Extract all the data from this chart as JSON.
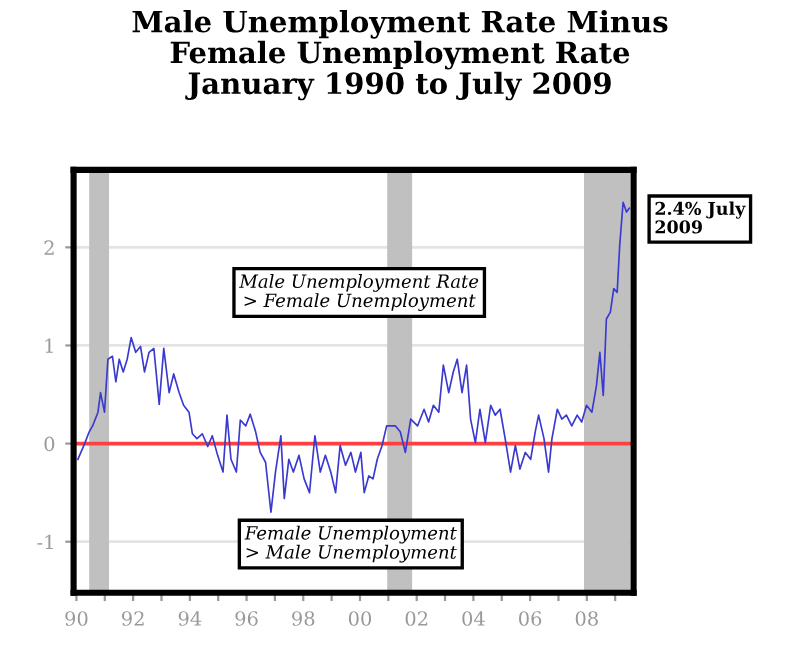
{
  "chart_data": {
    "type": "line",
    "title": "Male Unemployment Rate Minus\nFemale Unemployment Rate\nJanuary 1990 to July 2009",
    "annotations": [
      "Male Unemployment Rate\n> Female Unemployment",
      "Female Unemployment\n> Male Unemployment",
      {
        "text": "2.4% July\n2009",
        "x": 2009.5,
        "y": 2.4
      }
    ],
    "series": [
      {
        "color": "#3a3ad0",
        "x": [
          1990.05,
          1990.29,
          1990.45,
          1990.57,
          1990.76,
          1990.85,
          1990.99,
          1991.11,
          1991.27,
          1991.39,
          1991.51,
          1991.65,
          1991.79,
          1991.93,
          1992.09,
          1992.26,
          1992.4,
          1992.56,
          1992.73,
          1992.92,
          1993.08,
          1993.27,
          1993.43,
          1993.62,
          1993.78,
          1993.97,
          1994.09,
          1994.25,
          1994.44,
          1994.63,
          1994.79,
          1994.98,
          1995.17,
          1995.31,
          1995.45,
          1995.64,
          1995.78,
          1995.97,
          1996.13,
          1996.32,
          1996.48,
          1996.67,
          1996.86,
          1997.02,
          1997.21,
          1997.33,
          1997.49,
          1997.65,
          1997.85,
          1998.03,
          1998.22,
          1998.41,
          1998.6,
          1998.78,
          1998.97,
          1999.14,
          1999.3,
          1999.49,
          1999.68,
          1999.84,
          2000.03,
          2000.15,
          2000.31,
          2000.46,
          2000.61,
          2000.78,
          2000.94,
          2001.25,
          2001.42,
          2001.6,
          2001.79,
          2002.03,
          2002.26,
          2002.42,
          2002.59,
          2002.78,
          2002.94,
          2003.13,
          2003.29,
          2003.43,
          2003.6,
          2003.76,
          2003.9,
          2004.07,
          2004.23,
          2004.42,
          2004.61,
          2004.77,
          2004.94,
          2005.12,
          2005.31,
          2005.48,
          2005.64,
          2005.83,
          2006.02,
          2006.18,
          2006.3,
          2006.49,
          2006.65,
          2006.77,
          2006.96,
          2007.12,
          2007.28,
          2007.47,
          2007.66,
          2007.82,
          2007.99,
          2008.18,
          2008.34,
          2008.46,
          2008.58,
          2008.69,
          2008.83,
          2008.95,
          2009.07,
          2009.16,
          2009.28,
          2009.4,
          2009.5
        ],
        "values": [
          -0.16,
          0,
          0.12,
          0.18,
          0.32,
          0.52,
          0.32,
          0.86,
          0.89,
          0.63,
          0.86,
          0.73,
          0.86,
          1.08,
          0.93,
          0.99,
          0.73,
          0.93,
          0.97,
          0.4,
          0.97,
          0.52,
          0.71,
          0.52,
          0.39,
          0.32,
          0.1,
          0.05,
          0.1,
          -0.03,
          0.08,
          -0.12,
          -0.29,
          0.29,
          -0.16,
          -0.29,
          0.24,
          0.18,
          0.3,
          0.12,
          -0.09,
          -0.19,
          -0.7,
          -0.29,
          0.08,
          -0.56,
          -0.16,
          -0.29,
          -0.12,
          -0.36,
          -0.5,
          0.08,
          -0.29,
          -0.12,
          -0.29,
          -0.5,
          -0.02,
          -0.22,
          -0.09,
          -0.29,
          -0.09,
          -0.5,
          -0.33,
          -0.36,
          -0.16,
          -0.02,
          0.18,
          0.18,
          0.12,
          -0.09,
          0.25,
          0.18,
          0.35,
          0.22,
          0.39,
          0.32,
          0.8,
          0.52,
          0.73,
          0.86,
          0.52,
          0.8,
          0.25,
          0.01,
          0.35,
          0.01,
          0.39,
          0.29,
          0.35,
          0.05,
          -0.29,
          -0.02,
          -0.26,
          -0.09,
          -0.16,
          0.12,
          0.29,
          0.05,
          -0.29,
          0.05,
          0.35,
          0.25,
          0.29,
          0.18,
          0.29,
          0.22,
          0.39,
          0.32,
          0.59,
          0.93,
          0.49,
          1.27,
          1.34,
          1.58,
          1.54,
          2.02,
          2.46,
          2.36,
          2.4
        ]
      }
    ],
    "xlim": [
      1989.9,
      2009.65
    ],
    "ylim": [
      -1.52,
      2.79
    ],
    "xticks": [
      {
        "value": 1990,
        "label": "90"
      },
      {
        "value": 1991,
        "label": null
      },
      {
        "value": 1992,
        "label": "92"
      },
      {
        "value": 1993,
        "label": null
      },
      {
        "value": 1994,
        "label": "94"
      },
      {
        "value": 1995,
        "label": null
      },
      {
        "value": 1996,
        "label": "96"
      },
      {
        "value": 1997,
        "label": null
      },
      {
        "value": 1998,
        "label": "98"
      },
      {
        "value": 1999,
        "label": null
      },
      {
        "value": 2000,
        "label": "00"
      },
      {
        "value": 2001,
        "label": null
      },
      {
        "value": 2002,
        "label": "02"
      },
      {
        "value": 2003,
        "label": null
      },
      {
        "value": 2004,
        "label": "04"
      },
      {
        "value": 2005,
        "label": null
      },
      {
        "value": 2006,
        "label": "06"
      },
      {
        "value": 2007,
        "label": null
      },
      {
        "value": 2008,
        "label": "08"
      },
      {
        "value": 2009,
        "label": null
      }
    ],
    "yticks": [
      -1,
      0,
      1,
      2
    ],
    "grid": "y",
    "ref_lines": [
      {
        "axis": "y",
        "value": 0,
        "color": "#ff4040"
      }
    ],
    "bands": [
      {
        "axis": "x",
        "from": 1990.45,
        "to": 1991.15,
        "color": "#c0c0c0"
      },
      {
        "axis": "x",
        "from": 2000.96,
        "to": 2001.84,
        "color": "#c0c0c0"
      },
      {
        "axis": "x",
        "from": 2007.9,
        "to": 2009.53,
        "color": "#c0c0c0"
      }
    ]
  }
}
